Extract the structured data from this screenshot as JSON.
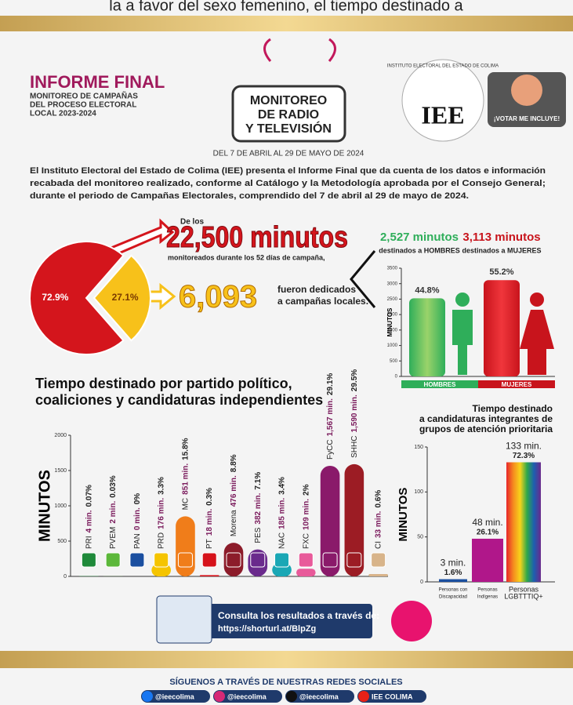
{
  "top_fragment": "la a favor del sexo femenino, el tiempo destinado a",
  "header": {
    "title": "INFORME FINAL",
    "subtitle": [
      "MONITOREO DE CAMPAÑAS",
      "DEL PROCESO ELECTORAL",
      "LOCAL 2023-2024"
    ],
    "badge": [
      "MONITOREO",
      "DE RADIO",
      "Y TELEVISIÓN"
    ],
    "date": "DEL 7 DE ABRIL AL 29 DE MAYO DE 2024",
    "logo": "IEE",
    "logo_institution": "INSTITUTO ELECTORAL DEL ESTADO DE COLIMA",
    "slogan": "¡VOTAR ME INCLUYE!"
  },
  "intro": [
    "El Instituto Electoral del Estado de Colima (IEE) presenta el Informe Final que da cuenta de los datos e información",
    "recabada del monitoreo realizado, conforme al Catálogo y la Metodología aprobada por el Consejo General;",
    "durante el periodo de Campañas Electorales, comprendido del 7 de abril al 29 de mayo de 2024."
  ],
  "summary": {
    "prefix": "De los",
    "total": "22,500 minutos",
    "total_note": "monitoreados durante los 52 días de campaña,",
    "local": "6,093",
    "local_note": [
      "fueron dedicados",
      "a campañas locales."
    ]
  },
  "chart_data": [
    {
      "type": "pie",
      "categories": [
        null,
        null
      ],
      "values": [
        72.9,
        27.1
      ],
      "value_labels": [
        "72.9%",
        "27.1%"
      ],
      "colors": [
        "#d4151c",
        "#f7c11a"
      ]
    },
    {
      "type": "bar",
      "headers": [
        "2,527 minutos",
        "3,113 minutos"
      ],
      "header_notes": [
        "destinados a HOMBRES",
        "destinados a MUJERES"
      ],
      "categories": [
        "HOMBRES",
        "MUJERES"
      ],
      "values": [
        2527,
        3113
      ],
      "shares": [
        44.8,
        55.2
      ],
      "share_labels": [
        "44.8%",
        "55.2%"
      ],
      "colors": [
        "#2fae5a",
        "#c8141c"
      ],
      "ylabel": "MINUTOS",
      "ylim": [
        0,
        3500
      ],
      "yticks": [
        0,
        500,
        1000,
        1500,
        2000,
        2500,
        3000,
        3500
      ]
    },
    {
      "type": "bar",
      "title": [
        "Tiempo destinado por partido político,",
        "coaliciones y candidaturas independientes"
      ],
      "ylabel": "MINUTOS",
      "categories": [
        "PRI",
        "PVEM",
        "PAN",
        "PRD",
        "MC",
        "PT",
        "Morena",
        "PES",
        "NAC",
        "FXC",
        "FyCC",
        "SHHC",
        "CI"
      ],
      "values": [
        4,
        2,
        0,
        176,
        851,
        18,
        476,
        382,
        185,
        109,
        1567,
        1590,
        33
      ],
      "value_labels": [
        "4 min.",
        "2 min.",
        "0 min.",
        "176 min.",
        "851 min.",
        "18 min.",
        "476 min.",
        "382 min.",
        "185 min.",
        "109 min.",
        "1,567 min.",
        "1,590 min.",
        "33 min."
      ],
      "shares": [
        0.07,
        0.03,
        0,
        3.3,
        15.8,
        0.3,
        8.8,
        7.1,
        3.4,
        2,
        29.1,
        29.5,
        0.6
      ],
      "share_labels": [
        "0.07%",
        "0.03%",
        "0%",
        "3.3%",
        "15.8%",
        "0.3%",
        "8.8%",
        "7.1%",
        "3.4%",
        "2%",
        "29.1%",
        "29.5%",
        "0.6%"
      ],
      "colors": [
        "#1f8a3a",
        "#5cb83a",
        "#1b4fa0",
        "#f5c400",
        "#f07d1a",
        "#d6131b",
        "#8c1c2a",
        "#6a2a8c",
        "#1aa7b5",
        "#e85a9a",
        "#8a1a6a",
        "#9c1c24",
        "#d8b48a"
      ],
      "ylim": [
        0,
        2000
      ],
      "yticks": [
        0,
        500,
        1000,
        1500,
        2000
      ]
    },
    {
      "type": "bar",
      "title": [
        "Tiempo destinado",
        "a candidaturas integrantes de",
        "grupos de atención prioritaria"
      ],
      "ylabel": "MINUTOS",
      "categories": [
        [
          "Personas con",
          "Discapacidad"
        ],
        [
          "Personas",
          "Indígenas"
        ],
        [
          "Personas",
          "LGBTTTIQ+"
        ]
      ],
      "values": [
        3,
        48,
        133
      ],
      "value_labels": [
        "3 min.",
        "48 min.",
        "133 min."
      ],
      "shares": [
        1.6,
        26.1,
        72.3
      ],
      "share_labels": [
        "1.6%",
        "26.1%",
        "72.3%"
      ],
      "colors": [
        "#1b4fa0",
        "#b0178a",
        "#e8262a"
      ],
      "ylim": [
        0,
        150
      ],
      "yticks": [
        0,
        50,
        100,
        150
      ]
    }
  ],
  "footer": {
    "consult": "Consulta los resultados a través de:",
    "url": "https://shorturl.at/BlpZg",
    "follow": "SÍGUENOS A TRAVÉS DE NUESTRAS REDES SOCIALES",
    "socials": [
      "@ieecolima",
      "@ieecolima",
      "@ieecolima",
      "IEE COLIMA"
    ]
  }
}
